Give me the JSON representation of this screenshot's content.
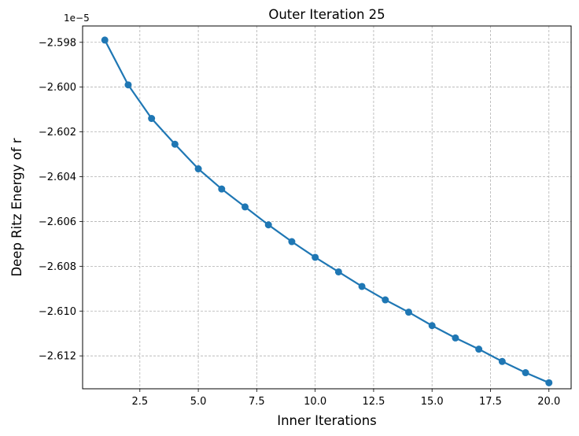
{
  "chart_data": {
    "type": "line",
    "title": "Outer Iteration 25",
    "xlabel": "Inner Iterations",
    "ylabel": "Deep Ritz Energy of r",
    "y_offset_label": "1e−5",
    "xlim": [
      0.05,
      20.95
    ],
    "ylim": [
      -2.61347,
      -2.59727
    ],
    "x_ticks": [
      2.5,
      5.0,
      7.5,
      10.0,
      12.5,
      15.0,
      17.5,
      20.0
    ],
    "x_tick_labels": [
      "2.5",
      "5.0",
      "7.5",
      "10.0",
      "12.5",
      "15.0",
      "17.5",
      "20.0"
    ],
    "y_ticks": [
      -2.598,
      -2.6,
      -2.602,
      -2.604,
      -2.606,
      -2.608,
      -2.61,
      -2.612
    ],
    "y_tick_labels": [
      "−2.598",
      "−2.600",
      "−2.602",
      "−2.604",
      "−2.606",
      "−2.608",
      "−2.610",
      "−2.612"
    ],
    "grid": true,
    "series": [
      {
        "color": "#1f77b4",
        "x": [
          1,
          2,
          3,
          4,
          5,
          6,
          7,
          8,
          9,
          10,
          11,
          12,
          13,
          14,
          15,
          16,
          17,
          18,
          19,
          20
        ],
        "y": [
          -2.5979,
          -2.5999,
          -2.6014,
          -2.60255,
          -2.60365,
          -2.60455,
          -2.60535,
          -2.60615,
          -2.6069,
          -2.6076,
          -2.60825,
          -2.6089,
          -2.6095,
          -2.61005,
          -2.61065,
          -2.6112,
          -2.6117,
          -2.61225,
          -2.61275,
          -2.6132
        ]
      }
    ]
  }
}
